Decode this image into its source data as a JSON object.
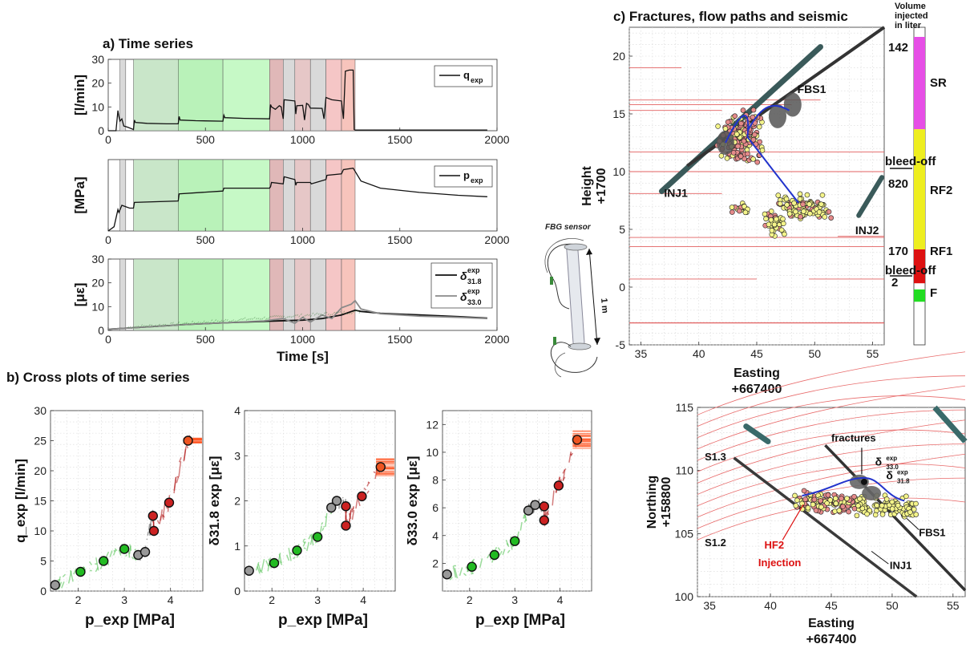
{
  "chart_data": [
    {
      "id": "ts1",
      "type": "line",
      "title": "a) Time series",
      "ylabel": "[l/min]",
      "xlim": [
        0,
        2000
      ],
      "ylim": [
        0,
        30
      ],
      "xticks": [
        0,
        500,
        1000,
        1500,
        2000
      ],
      "yticks": [
        0,
        10,
        20,
        30
      ],
      "legend": [
        "q",
        "exp"
      ],
      "series": [
        {
          "name": "q_exp",
          "x": [
            0,
            40,
            50,
            55,
            60,
            70,
            80,
            100,
            130,
            135,
            140,
            200,
            300,
            360,
            365,
            370,
            450,
            590,
            595,
            600,
            700,
            830,
            835,
            840,
            860,
            880,
            890,
            900,
            905,
            960,
            965,
            970,
            1000,
            1010,
            1020,
            1030,
            1040,
            1100,
            1110,
            1120,
            1150,
            1200,
            1210,
            1220,
            1240,
            1260,
            1265,
            1270,
            1950
          ],
          "y": [
            0,
            0,
            8.5,
            6,
            4,
            5,
            2,
            1.5,
            0.5,
            4.5,
            3.5,
            3.1,
            2.9,
            2.9,
            6,
            4.5,
            4.2,
            4.0,
            6.5,
            5.5,
            5.2,
            5.0,
            11,
            10,
            9,
            10.5,
            10,
            5,
            13,
            12.5,
            7,
            10.5,
            10.7,
            4.5,
            11.5,
            11,
            9.5,
            9.4,
            5,
            14,
            13,
            12.5,
            5,
            25,
            25.5,
            25.5,
            0.5,
            0.3,
            0.3
          ]
        }
      ],
      "shade": [
        [
          60,
          90,
          "#d9d9d9"
        ],
        [
          130,
          360,
          "#c9e6c9"
        ],
        [
          360,
          590,
          "#b9f2b9"
        ],
        [
          590,
          830,
          "#c6f9c6"
        ],
        [
          830,
          900,
          "#e0b8b8"
        ],
        [
          900,
          960,
          "#d9d9d9"
        ],
        [
          960,
          1040,
          "#e6c7c7"
        ],
        [
          1040,
          1120,
          "#d9d9d9"
        ],
        [
          1120,
          1200,
          "#f5c6c6"
        ],
        [
          1200,
          1270,
          "#f7c4bc"
        ]
      ]
    },
    {
      "id": "ts2",
      "type": "line",
      "ylabel": "[MPa]",
      "xlim": [
        0,
        2000
      ],
      "ylim": [
        0,
        5
      ],
      "xticks": [
        0,
        500,
        1000,
        1500,
        2000
      ],
      "yticks": [],
      "legend": [
        "p",
        "exp"
      ],
      "series": [
        {
          "name": "p_exp",
          "x": [
            0,
            30,
            50,
            55,
            70,
            90,
            110,
            130,
            135,
            360,
            365,
            590,
            595,
            830,
            835,
            840,
            900,
            905,
            960,
            965,
            970,
            1040,
            1045,
            1120,
            1125,
            1200,
            1210,
            1260,
            1300,
            1400,
            1600,
            1800,
            1950
          ],
          "y": [
            0,
            0.3,
            1.5,
            1.3,
            1.8,
            1.7,
            1.6,
            1.6,
            2.0,
            2.1,
            2.6,
            2.8,
            3.0,
            3.0,
            3.1,
            3.4,
            3.3,
            3.8,
            3.6,
            3.2,
            3.4,
            3.4,
            3.3,
            3.6,
            3.9,
            4.0,
            4.3,
            4.4,
            3.5,
            3.0,
            2.7,
            2.5,
            2.4
          ]
        }
      ],
      "shade": [
        [
          60,
          90,
          "#d9d9d9"
        ],
        [
          130,
          360,
          "#c9e6c9"
        ],
        [
          360,
          590,
          "#b9f2b9"
        ],
        [
          590,
          830,
          "#c6f9c6"
        ],
        [
          830,
          900,
          "#e0b8b8"
        ],
        [
          900,
          960,
          "#d9d9d9"
        ],
        [
          960,
          1040,
          "#e6c7c7"
        ],
        [
          1040,
          1120,
          "#d9d9d9"
        ],
        [
          1120,
          1200,
          "#f5c6c6"
        ],
        [
          1200,
          1270,
          "#f7c4bc"
        ]
      ]
    },
    {
      "id": "ts3",
      "type": "line",
      "xlabel": "Time [s]",
      "ylabel": "[με]",
      "xlim": [
        0,
        2000
      ],
      "ylim": [
        0,
        30
      ],
      "xticks": [
        0,
        500,
        1000,
        1500,
        2000
      ],
      "yticks": [
        0,
        10,
        20,
        30
      ],
      "legend": [
        "δ",
        "exp",
        "31.8",
        "33.0"
      ],
      "series": [
        {
          "name": "δ31.8",
          "color": "#111111",
          "x": [
            0,
            200,
            400,
            600,
            800,
            1000,
            1100,
            1200,
            1270,
            1300,
            1400,
            1600,
            1800,
            1950
          ],
          "y": [
            0.5,
            1.5,
            2.5,
            3.2,
            3.8,
            4.3,
            5,
            6.5,
            8.5,
            8,
            7.2,
            6.5,
            5.8,
            5.2
          ]
        },
        {
          "name": "δ33.0",
          "color": "#8a8a8a",
          "x": [
            0,
            200,
            400,
            600,
            800,
            900,
            960,
            1000,
            1040,
            1100,
            1150,
            1200,
            1250,
            1270,
            1300,
            1400,
            1600,
            1800,
            1950
          ],
          "y": [
            0.5,
            1.5,
            2.5,
            3.2,
            4,
            5,
            3,
            5.5,
            3.5,
            6.5,
            5,
            9.5,
            11,
            12.5,
            9,
            7,
            6,
            5.5,
            5
          ]
        }
      ],
      "shade": [
        [
          60,
          90,
          "#d9d9d9"
        ],
        [
          130,
          360,
          "#c9e6c9"
        ],
        [
          360,
          590,
          "#b9f2b9"
        ],
        [
          590,
          830,
          "#c6f9c6"
        ],
        [
          830,
          900,
          "#e0b8b8"
        ],
        [
          900,
          960,
          "#d9d9d9"
        ],
        [
          960,
          1040,
          "#e6c7c7"
        ],
        [
          1040,
          1120,
          "#d9d9d9"
        ],
        [
          1120,
          1200,
          "#f5c6c6"
        ],
        [
          1200,
          1270,
          "#f7c4bc"
        ]
      ]
    },
    {
      "id": "cp1",
      "type": "scatter",
      "title": "b) Cross plots of time series",
      "xlabel": "p_exp [MPa]",
      "ylabel": "q_exp [l/min]",
      "xlim": [
        1.4,
        4.7
      ],
      "ylim": [
        0,
        30
      ],
      "xticks": [
        2,
        3,
        4
      ],
      "yticks": [
        0,
        5,
        10,
        15,
        20,
        25,
        30
      ],
      "points": [
        [
          1.5,
          1,
          "#999999"
        ],
        [
          2.05,
          3.2,
          "#22bb22"
        ],
        [
          2.55,
          5,
          "#22bb22"
        ],
        [
          3,
          7,
          "#22bb22"
        ],
        [
          3.3,
          6,
          "#999999"
        ],
        [
          3.45,
          6.5,
          "#999999"
        ],
        [
          3.62,
          12.5,
          "#cc2222"
        ],
        [
          3.64,
          10,
          "#cc2222"
        ],
        [
          3.97,
          14.7,
          "#cc2222"
        ],
        [
          4.38,
          25,
          "#ee5522"
        ]
      ]
    },
    {
      "id": "cp2",
      "type": "scatter",
      "xlabel": "p_exp [MPa]",
      "ylabel": "δ31.8 exp [με]",
      "xlim": [
        1.4,
        4.7
      ],
      "ylim": [
        0,
        4
      ],
      "xticks": [
        2,
        3,
        4
      ],
      "yticks": [
        0,
        1,
        2,
        3,
        4
      ],
      "points": [
        [
          1.5,
          0.45,
          "#999999"
        ],
        [
          2.05,
          0.62,
          "#22bb22"
        ],
        [
          2.55,
          0.9,
          "#22bb22"
        ],
        [
          3,
          1.2,
          "#22bb22"
        ],
        [
          3.3,
          1.85,
          "#999999"
        ],
        [
          3.42,
          2,
          "#999999"
        ],
        [
          3.62,
          1.88,
          "#cc2222"
        ],
        [
          3.62,
          1.45,
          "#cc2222"
        ],
        [
          3.97,
          2.1,
          "#cc2222"
        ],
        [
          4.38,
          2.75,
          "#ee5522"
        ]
      ]
    },
    {
      "id": "cp3",
      "type": "scatter",
      "xlabel": "p_exp [MPa]",
      "ylabel": "δ33.0 exp [με]",
      "xlim": [
        1.4,
        4.7
      ],
      "ylim": [
        0,
        13
      ],
      "xticks": [
        2,
        3,
        4
      ],
      "yticks": [
        2,
        4,
        6,
        8,
        10,
        12
      ],
      "points": [
        [
          1.5,
          1.2,
          "#999999"
        ],
        [
          2.05,
          1.75,
          "#22bb22"
        ],
        [
          2.55,
          2.6,
          "#22bb22"
        ],
        [
          3,
          3.6,
          "#22bb22"
        ],
        [
          3.3,
          5.8,
          "#999999"
        ],
        [
          3.45,
          6.2,
          "#999999"
        ],
        [
          3.65,
          6.1,
          "#cc2222"
        ],
        [
          3.65,
          5.1,
          "#cc2222"
        ],
        [
          3.97,
          7.6,
          "#cc2222"
        ],
        [
          4.38,
          10.9,
          "#ee5522"
        ]
      ]
    },
    {
      "id": "sc",
      "type": "scatter",
      "title": "c) Fractures, flow paths and seismic",
      "xlabel": "Easting +667400",
      "ylabel": "Height +1700",
      "xlim": [
        34,
        56
      ],
      "ylim": [
        -5,
        22.5
      ],
      "xticks": [
        35,
        40,
        45,
        50,
        55
      ],
      "yticks": [
        -5,
        0,
        5,
        10,
        15,
        20
      ],
      "annotations": [
        "FBS1",
        "INJ1",
        "INJ2"
      ],
      "bar_title": "Volume injected in liter",
      "bar_labels": {
        "v142": "142",
        "sr": "SR",
        "bleed1": "bleed-off",
        "v820": "820",
        "rf2": "RF2",
        "v170": "170",
        "rf1": "RF1",
        "bleed2": "bleed-off",
        "v2": "2",
        "f": "F"
      },
      "bar_segments": [
        [
          "#e64ee6",
          0.0,
          0.3
        ],
        [
          "#eeee1f",
          0.3,
          0.69
        ],
        [
          "#dd1111",
          0.69,
          0.8
        ],
        [
          "#22dd22",
          0.82,
          0.86
        ]
      ]
    },
    {
      "id": "plan",
      "type": "scatter",
      "xlabel": "Easting +667400",
      "ylabel": "Northing +158800",
      "xlim": [
        34,
        56
      ],
      "ylim": [
        100,
        115
      ],
      "xticks": [
        35,
        40,
        45,
        50,
        55
      ],
      "yticks": [
        100,
        105,
        110,
        115
      ],
      "annotations": {
        "s13": "S1.3",
        "s12": "S1.2",
        "fractures": "fractures",
        "d330": "δ",
        "d330sup": "exp",
        "d330sub": "33.0",
        "d318": "δ",
        "d318sup": "exp",
        "d318sub": "31.8",
        "inj1": "INJ1",
        "fbs1": "FBS1",
        "hf2a": "HF2",
        "hf2b": "Injection"
      }
    }
  ],
  "sensor": {
    "title": "FBG sensor",
    "length": "1 m"
  }
}
